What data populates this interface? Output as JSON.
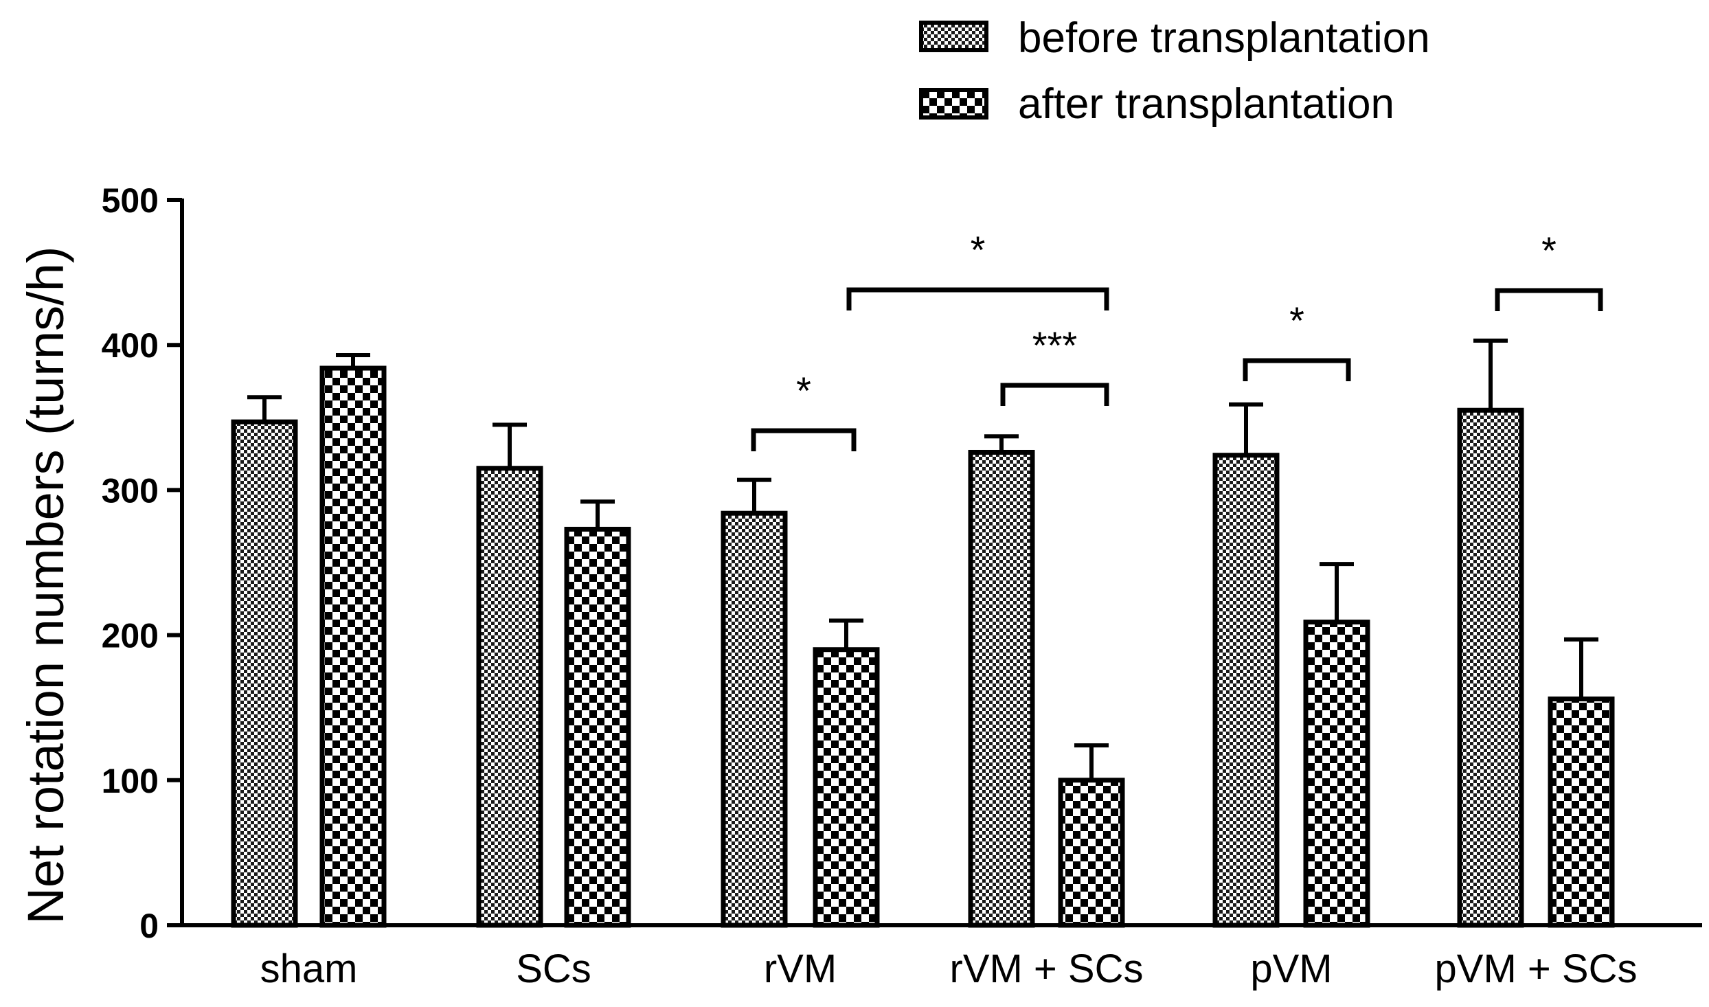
{
  "chart_data": {
    "type": "bar",
    "title": "",
    "xlabel": "",
    "ylabel": "Net rotation numbers (turns/h)",
    "ylim": [
      0,
      500
    ],
    "yticks": [
      0,
      100,
      200,
      300,
      400,
      500
    ],
    "ytick_labels": [
      "0",
      "100",
      "200",
      "300",
      "400",
      "500"
    ],
    "categories": [
      "sham",
      "SCs",
      "rVM",
      "rVM + SCs",
      "pVM",
      "pVM + SCs"
    ],
    "series": [
      {
        "name": "before transplantation",
        "pattern": "fine-checker",
        "values": [
          347,
          315,
          284,
          326,
          324,
          355
        ],
        "errors": [
          17,
          30,
          23,
          11,
          35,
          48
        ]
      },
      {
        "name": "after transplantation",
        "pattern": "coarse-checker",
        "values": [
          384,
          273,
          190,
          100,
          209,
          156
        ],
        "errors": [
          9,
          19,
          20,
          24,
          40,
          41
        ]
      }
    ],
    "legend_position": "top-right",
    "significance": [
      {
        "label": "*",
        "group_a": "rVM",
        "series_a": "before transplantation",
        "group_b": "rVM",
        "series_b": "after transplantation"
      },
      {
        "label": "*",
        "group_a": "rVM",
        "series_a": "after transplantation",
        "group_b": "rVM + SCs",
        "series_b": "after transplantation"
      },
      {
        "label": "***",
        "group_a": "rVM + SCs",
        "series_a": "before transplantation",
        "group_b": "rVM + SCs",
        "series_b": "after transplantation"
      },
      {
        "label": "*",
        "group_a": "pVM",
        "series_a": "before transplantation",
        "group_b": "pVM",
        "series_b": "after transplantation"
      },
      {
        "label": "*",
        "group_a": "pVM + SCs",
        "series_a": "before transplantation",
        "group_b": "pVM + SCs",
        "series_b": "after transplantation"
      }
    ],
    "colors": {
      "ink": "#000000",
      "light": "#ffffff",
      "dark": "#000000"
    }
  }
}
